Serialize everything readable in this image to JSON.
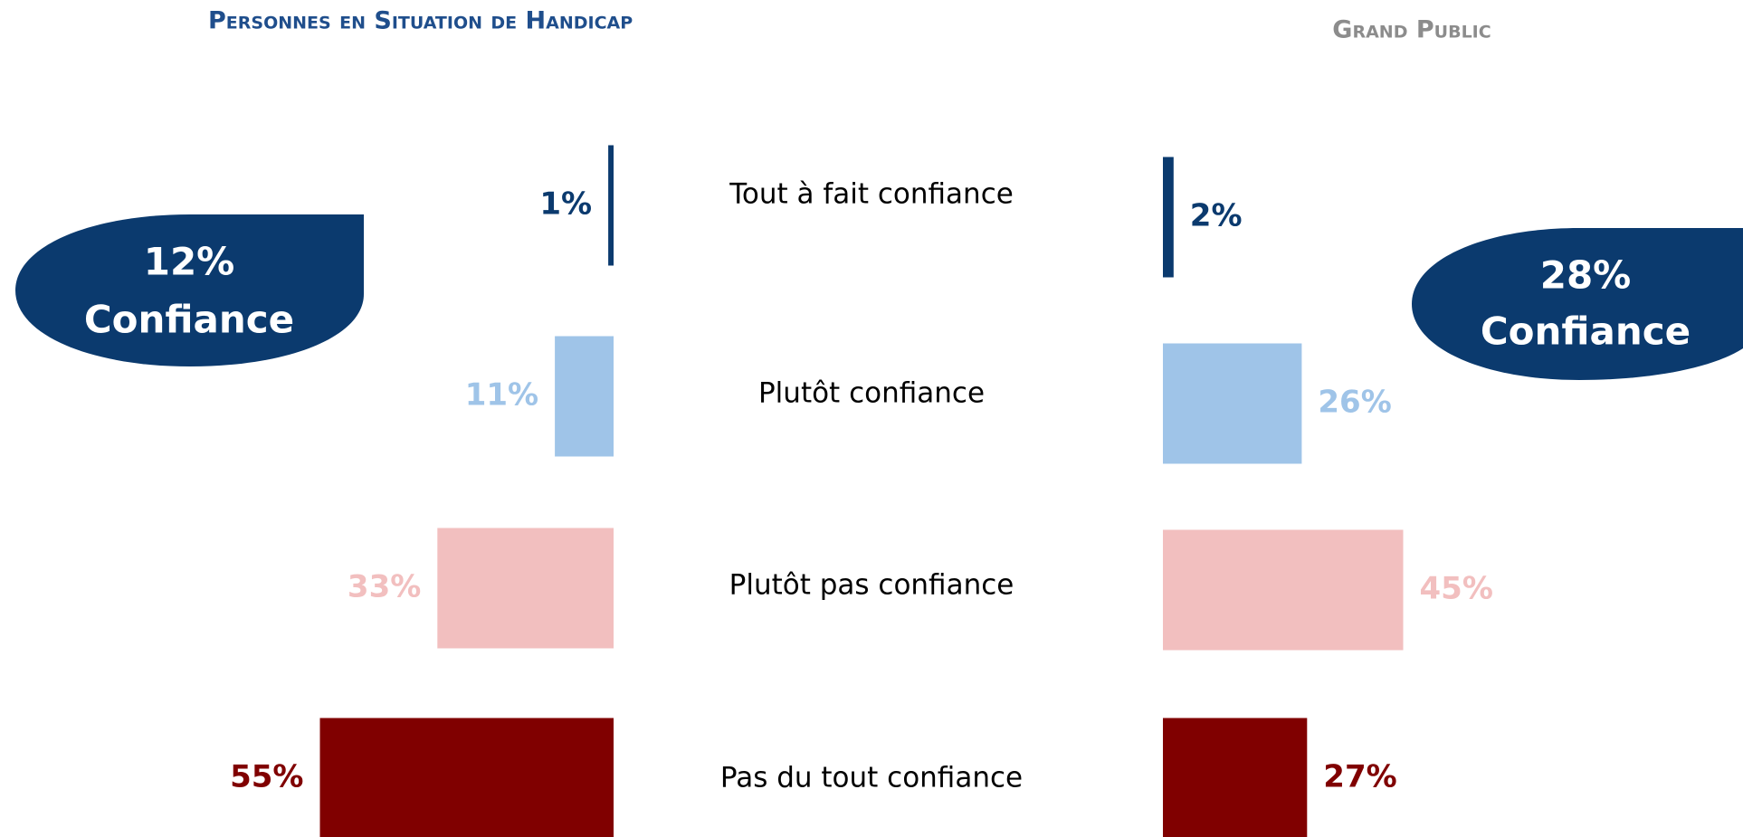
{
  "chart_data": {
    "type": "butterfly-bar",
    "categories": [
      "Tout à fait confiance",
      "Plutôt confiance",
      "Plutôt pas confiance",
      "Pas du tout confiance"
    ],
    "colors": [
      "#0b3a6e",
      "#9fc4e8",
      "#f2bfbf",
      "#800000"
    ],
    "series": [
      {
        "name": "Personnes en Situation de Handicap",
        "title_color": "#1f4e8c",
        "values": [
          1,
          11,
          33,
          55
        ],
        "value_labels": [
          "1%",
          "11%",
          "33%",
          "55%"
        ],
        "summary": {
          "value": 12,
          "label": "12%",
          "text": "Confiance"
        }
      },
      {
        "name": "Grand Public",
        "title_color": "#8c8c8c",
        "values": [
          2,
          26,
          45,
          27
        ],
        "value_labels": [
          "2%",
          "26%",
          "45%",
          "27%"
        ],
        "summary": {
          "value": 28,
          "label": "28%",
          "text": "Confiance"
        }
      }
    ]
  }
}
